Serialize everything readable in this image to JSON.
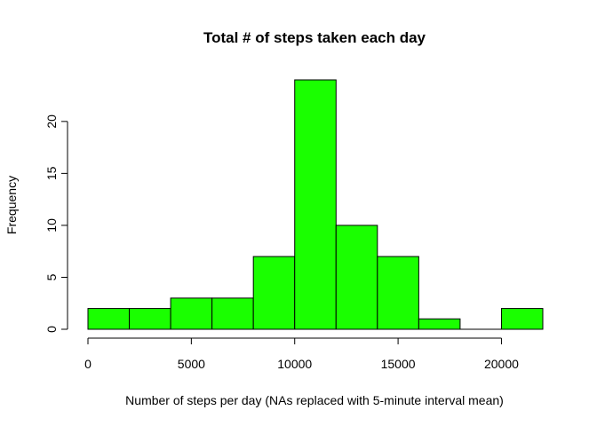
{
  "chart_data": {
    "type": "bar",
    "title": "Total # of steps taken each day",
    "xlabel": "Number of steps per day (NAs replaced with 5-minute interval mean)",
    "ylabel": "Frequency",
    "bin_width": 2000,
    "bins": [
      {
        "from": 0,
        "to": 2000,
        "count": 2
      },
      {
        "from": 2000,
        "to": 4000,
        "count": 2
      },
      {
        "from": 4000,
        "to": 6000,
        "count": 3
      },
      {
        "from": 6000,
        "to": 8000,
        "count": 3
      },
      {
        "from": 8000,
        "to": 10000,
        "count": 7
      },
      {
        "from": 10000,
        "to": 12000,
        "count": 24
      },
      {
        "from": 12000,
        "to": 14000,
        "count": 10
      },
      {
        "from": 14000,
        "to": 16000,
        "count": 7
      },
      {
        "from": 16000,
        "to": 18000,
        "count": 1
      },
      {
        "from": 18000,
        "to": 20000,
        "count": 0
      },
      {
        "from": 20000,
        "to": 22000,
        "count": 2
      }
    ],
    "xlim": [
      0,
      22000
    ],
    "ylim": [
      0,
      24
    ],
    "xticks": [
      0,
      5000,
      10000,
      15000,
      20000
    ],
    "yticks": [
      0,
      5,
      10,
      15,
      20
    ],
    "bar_color": "#1aff00",
    "grid": false
  }
}
